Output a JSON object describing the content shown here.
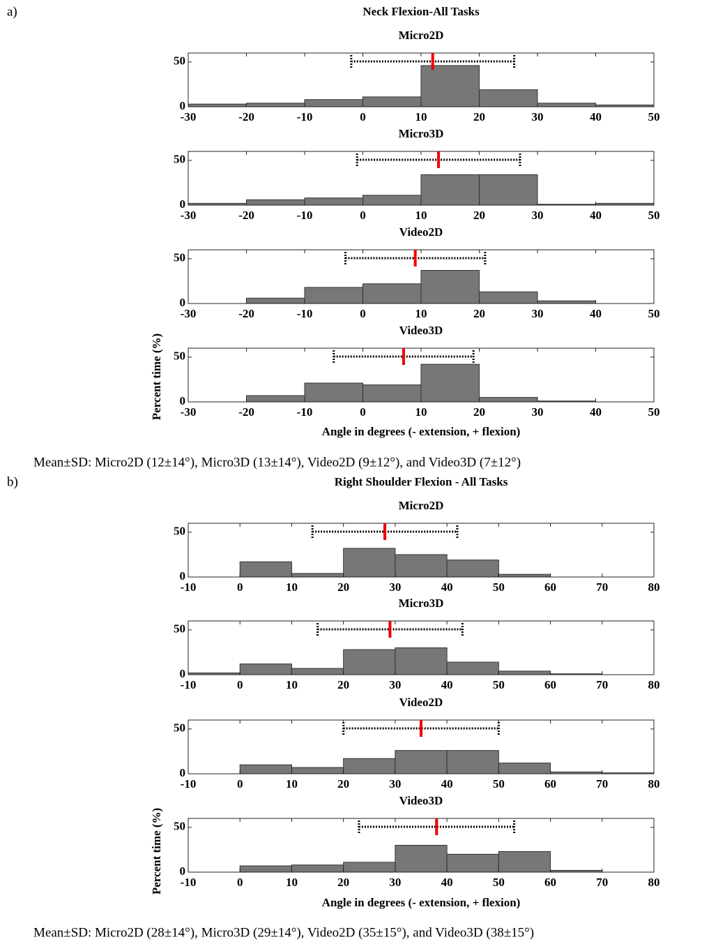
{
  "figure": {
    "panels": [
      {
        "label": "a)",
        "title": "Neck Flexion-All Tasks",
        "ylabel": "Percent time (%)",
        "xlabel": "Angle in degrees (- extension, + flexion)",
        "caption": "Mean±SD: Micro2D (12±14°), Micro3D (13±14°), Video2D (9±12°), and Video3D (7±12°)"
      },
      {
        "label": "b)",
        "title": "Right Shoulder Flexion - All Tasks",
        "ylabel": "Percent time (%)",
        "xlabel": "Angle in degrees (- extension, + flexion)",
        "caption": "Mean±SD: Micro2D (28±14°), Micro3D (29±14°), Video2D (35±15°), and Video3D (38±15°)"
      }
    ]
  },
  "chart_data": [
    {
      "type": "histogram",
      "title": "Micro2D",
      "bins": [
        -30,
        -20,
        -10,
        0,
        10,
        20,
        30,
        40,
        50
      ],
      "values": [
        3,
        4,
        8,
        11,
        46,
        19,
        4,
        2
      ],
      "mean": 12,
      "sd": 14,
      "color": "#777777",
      "xlim": [
        -30,
        50
      ],
      "xticks": [
        -30,
        -20,
        -10,
        0,
        10,
        20,
        30,
        40,
        50
      ],
      "ylim": [
        0,
        60
      ],
      "yticks": [
        0,
        50
      ]
    },
    {
      "type": "histogram",
      "title": "Micro3D",
      "bins": [
        -30,
        -20,
        -10,
        0,
        10,
        20,
        30,
        40,
        50
      ],
      "values": [
        2,
        6,
        8,
        11,
        34,
        34,
        1,
        2
      ],
      "mean": 13,
      "sd": 14,
      "color": "#777777",
      "xlim": [
        -30,
        50
      ],
      "xticks": [
        -30,
        -20,
        -10,
        0,
        10,
        20,
        30,
        40,
        50
      ],
      "ylim": [
        0,
        60
      ],
      "yticks": [
        0,
        50
      ]
    },
    {
      "type": "histogram",
      "title": "Video2D",
      "bins": [
        -30,
        -20,
        -10,
        0,
        10,
        20,
        30,
        40,
        50
      ],
      "values": [
        0,
        6,
        18,
        22,
        37,
        13,
        3,
        0
      ],
      "mean": 9,
      "sd": 12,
      "color": "#777777",
      "xlim": [
        -30,
        50
      ],
      "xticks": [
        -30,
        -20,
        -10,
        0,
        10,
        20,
        30,
        40,
        50
      ],
      "ylim": [
        0,
        60
      ],
      "yticks": [
        0,
        50
      ]
    },
    {
      "type": "histogram",
      "title": "Video3D",
      "bins": [
        -30,
        -20,
        -10,
        0,
        10,
        20,
        30,
        40,
        50
      ],
      "values": [
        0,
        7,
        21,
        19,
        42,
        5,
        1,
        0
      ],
      "mean": 7,
      "sd": 12,
      "color": "#777777",
      "xlim": [
        -30,
        50
      ],
      "xticks": [
        -30,
        -20,
        -10,
        0,
        10,
        20,
        30,
        40,
        50
      ],
      "ylim": [
        0,
        60
      ],
      "yticks": [
        0,
        50
      ]
    },
    {
      "type": "histogram",
      "title": "Micro2D",
      "bins": [
        -10,
        0,
        10,
        20,
        30,
        40,
        50,
        60,
        70,
        80
      ],
      "values": [
        0,
        17,
        4,
        32,
        25,
        19,
        3,
        0,
        0
      ],
      "mean": 28,
      "sd": 14,
      "color": "#777777",
      "xlim": [
        -10,
        80
      ],
      "xticks": [
        -10,
        0,
        10,
        20,
        30,
        40,
        50,
        60,
        70,
        80
      ],
      "ylim": [
        0,
        60
      ],
      "yticks": [
        0,
        50
      ]
    },
    {
      "type": "histogram",
      "title": "Micro3D",
      "bins": [
        -10,
        0,
        10,
        20,
        30,
        40,
        50,
        60,
        70,
        80
      ],
      "values": [
        2,
        12,
        7,
        28,
        30,
        14,
        4,
        1,
        0
      ],
      "mean": 29,
      "sd": 14,
      "color": "#777777",
      "xlim": [
        -10,
        80
      ],
      "xticks": [
        -10,
        0,
        10,
        20,
        30,
        40,
        50,
        60,
        70,
        80
      ],
      "ylim": [
        0,
        60
      ],
      "yticks": [
        0,
        50
      ]
    },
    {
      "type": "histogram",
      "title": "Video2D",
      "bins": [
        -10,
        0,
        10,
        20,
        30,
        40,
        50,
        60,
        70,
        80
      ],
      "values": [
        0,
        10,
        7,
        17,
        26,
        26,
        12,
        2,
        1
      ],
      "mean": 35,
      "sd": 15,
      "color": "#777777",
      "xlim": [
        -10,
        80
      ],
      "xticks": [
        -10,
        0,
        10,
        20,
        30,
        40,
        50,
        60,
        70,
        80
      ],
      "ylim": [
        0,
        60
      ],
      "yticks": [
        0,
        50
      ]
    },
    {
      "type": "histogram",
      "title": "Video3D",
      "bins": [
        -10,
        0,
        10,
        20,
        30,
        40,
        50,
        60,
        70,
        80
      ],
      "values": [
        0,
        7,
        8,
        11,
        30,
        20,
        23,
        2,
        0
      ],
      "mean": 38,
      "sd": 15,
      "color": "#777777",
      "xlim": [
        -10,
        80
      ],
      "xticks": [
        -10,
        0,
        10,
        20,
        30,
        40,
        50,
        60,
        70,
        80
      ],
      "ylim": [
        0,
        60
      ],
      "yticks": [
        0,
        50
      ]
    }
  ]
}
